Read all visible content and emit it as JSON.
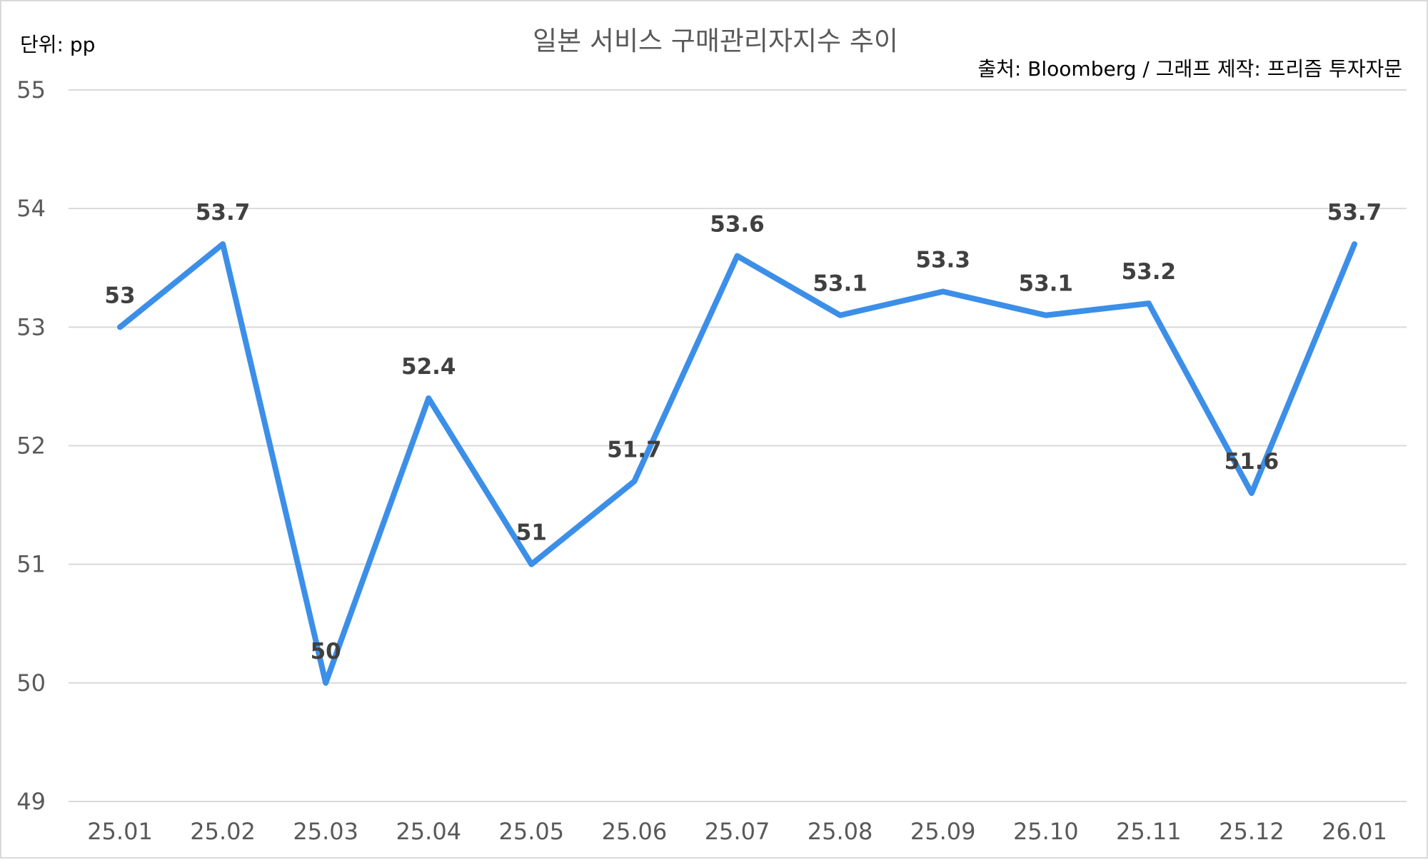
{
  "chart": {
    "title": "일본 서비스 구매관리자지수 추이",
    "unit_note": "단위: pp",
    "source_note": "출처: Bloomberg / 그래프 제작: 프리즘 투자자문",
    "line_color": "#3C8FE8"
  },
  "chart_data": {
    "type": "line",
    "title": "일본 서비스 구매관리자지수 추이",
    "xlabel": "",
    "ylabel": "",
    "categories": [
      "25.01",
      "25.02",
      "25.03",
      "25.04",
      "25.05",
      "25.06",
      "25.07",
      "25.08",
      "25.09",
      "25.10",
      "25.11",
      "25.12",
      "26.01"
    ],
    "series": [
      {
        "values": [
          53,
          53.7,
          50,
          52.4,
          51,
          51.7,
          53.6,
          53.1,
          53.3,
          53.1,
          53.2,
          51.6,
          53.7
        ]
      }
    ],
    "data_labels": [
      "53",
      "53.7",
      "50",
      "52.4",
      "51",
      "51.7",
      "53.6",
      "53.1",
      "53.3",
      "53.1",
      "53.2",
      "51.6",
      "53.7"
    ],
    "ylim": [
      49,
      55
    ],
    "yticks": [
      "49",
      "50",
      "51",
      "52",
      "53",
      "54",
      "55"
    ],
    "grid": true,
    "legend": "none"
  }
}
